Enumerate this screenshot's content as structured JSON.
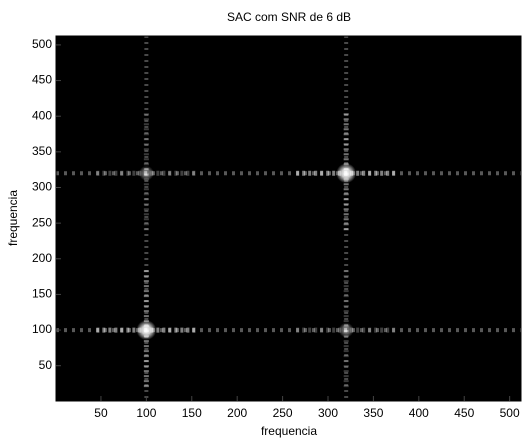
{
  "chart_data": {
    "type": "heatmap",
    "title": "SAC com SNR de 6 dB",
    "xlabel": "frequencia",
    "ylabel": "frequencia",
    "xlim": [
      0.5,
      512.5
    ],
    "ylim": [
      0.5,
      512.5
    ],
    "xticks": [
      50,
      100,
      150,
      200,
      250,
      300,
      350,
      400,
      450,
      500
    ],
    "yticks": [
      50,
      100,
      150,
      200,
      250,
      300,
      350,
      400,
      450,
      500
    ],
    "background": "#000000",
    "color": "#ffffff",
    "grid": false,
    "peaks": [
      {
        "x": 100,
        "y": 100,
        "intensity": 1
      },
      {
        "x": 320,
        "y": 320,
        "intensity": 1
      },
      {
        "x": 100,
        "y": 320,
        "intensity": 0.5
      },
      {
        "x": 320,
        "y": 100,
        "intensity": 0.5
      }
    ]
  }
}
